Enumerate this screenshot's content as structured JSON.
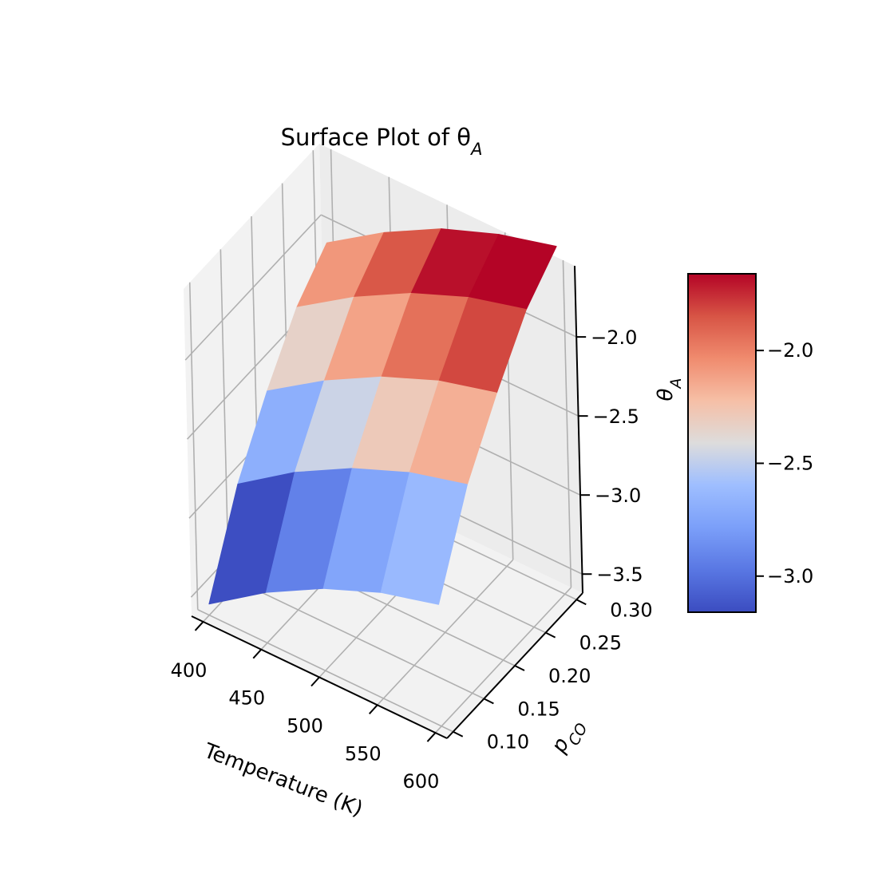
{
  "chart_data": {
    "type": "surface3d",
    "title": "Surface Plot of θ",
    "title_sub": "A",
    "x_axis": {
      "label": "Temperature (K)",
      "ticks": [
        "400",
        "450",
        "500",
        "550",
        "600"
      ],
      "tick_values": [
        400,
        450,
        500,
        550,
        600
      ],
      "range": [
        390,
        610
      ]
    },
    "y_axis": {
      "label_main": "p",
      "label_sub": "CO",
      "ticks": [
        "0.10",
        "0.15",
        "0.20",
        "0.25",
        "0.30"
      ],
      "tick_values": [
        0.1,
        0.15,
        0.2,
        0.25,
        0.3
      ],
      "range": [
        0.09,
        0.31
      ]
    },
    "z_axis": {
      "label_main": "θ",
      "label_sub": "A",
      "ticks": [
        "−2.0",
        "−2.5",
        "−3.0",
        "−3.5"
      ],
      "tick_values": [
        -2.0,
        -2.5,
        -3.0,
        -3.5
      ],
      "range": [
        -3.62,
        -1.55
      ]
    },
    "surface": {
      "x": [
        400,
        450,
        500,
        550,
        600
      ],
      "y": [
        0.1,
        0.15,
        0.2,
        0.25,
        0.3
      ],
      "z": [
        [
          -3.55,
          -3.3,
          -3.1,
          -2.95,
          -2.85
        ],
        [
          -3.0,
          -2.75,
          -2.55,
          -2.4,
          -2.3
        ],
        [
          -2.62,
          -2.38,
          -2.18,
          -2.03,
          -1.93
        ],
        [
          -2.3,
          -2.06,
          -1.86,
          -1.71,
          -1.61
        ],
        [
          -2.1,
          -1.86,
          -1.66,
          -1.52,
          -1.42
        ]
      ]
    },
    "colorbar": {
      "ticks": [
        "−2.0",
        "−2.5",
        "−3.0"
      ],
      "tick_values": [
        -2.0,
        -2.5,
        -3.0
      ],
      "range": [
        -3.16,
        -1.66
      ],
      "colormap": "coolwarm"
    },
    "grid": true
  }
}
